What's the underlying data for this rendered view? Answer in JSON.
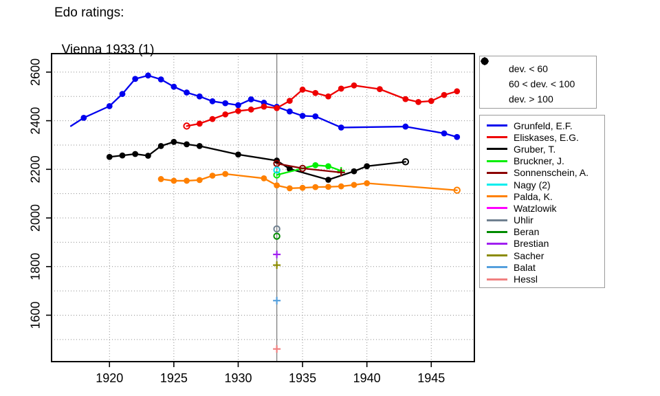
{
  "title": {
    "line1": "Edo ratings:",
    "line2": "Vienna 1933 (1)"
  },
  "marker_legend": {
    "items": [
      {
        "symbol": "filled-circle",
        "label": "dev. < 60"
      },
      {
        "symbol": "open-circle",
        "label": "60 < dev. < 100"
      },
      {
        "symbol": "plus",
        "label": "dev. > 100"
      }
    ]
  },
  "chart_data": {
    "type": "line",
    "title": "Edo ratings: Vienna 1933 (1)",
    "xlabel": "",
    "ylabel": "",
    "xlim": [
      1915.5,
      1948.35
    ],
    "ylim": [
      1409,
      2676
    ],
    "x_ticks": [
      1920,
      1925,
      1930,
      1935,
      1940,
      1945
    ],
    "y_ticks": [
      1600,
      1800,
      2000,
      2200,
      2400,
      2600
    ],
    "grid": "dotted, vertical at 5-year ticks, horizontal every 100 rating points",
    "legend_position": "right",
    "event_line": {
      "x": 1933,
      "color": "#808080"
    },
    "marker_meaning": {
      "f": "dev. < 60",
      "o": "60 < dev. < 100",
      "p": "dev. > 100",
      "n": "none"
    },
    "series": [
      {
        "name": "Grunfeld, E.F.",
        "color": "#0000EE",
        "legend_index": 0,
        "points": [
          [
            1917,
            2378,
            "n"
          ],
          [
            1918,
            2412,
            "f"
          ],
          [
            1920,
            2460,
            "f"
          ],
          [
            1921,
            2510,
            "f"
          ],
          [
            1922,
            2572,
            "f"
          ],
          [
            1923,
            2586,
            "f"
          ],
          [
            1924,
            2570,
            "f"
          ],
          [
            1925,
            2540,
            "f"
          ],
          [
            1926,
            2516,
            "f"
          ],
          [
            1927,
            2500,
            "f"
          ],
          [
            1928,
            2480,
            "f"
          ],
          [
            1929,
            2472,
            "f"
          ],
          [
            1930,
            2464,
            "f"
          ],
          [
            1931,
            2488,
            "f"
          ],
          [
            1932,
            2474,
            "f"
          ],
          [
            1933,
            2457,
            "f"
          ],
          [
            1934,
            2438,
            "f"
          ],
          [
            1935,
            2420,
            "f"
          ],
          [
            1936,
            2418,
            "f"
          ],
          [
            1938,
            2372,
            "f"
          ],
          [
            1943,
            2376,
            "f"
          ],
          [
            1946,
            2348,
            "f"
          ],
          [
            1947,
            2333,
            "f"
          ]
        ]
      },
      {
        "name": "Eliskases, E.G.",
        "color": "#EE0000",
        "legend_index": 1,
        "points": [
          [
            1926,
            2378,
            "o"
          ],
          [
            1927,
            2388,
            "f"
          ],
          [
            1928,
            2407,
            "f"
          ],
          [
            1929,
            2426,
            "f"
          ],
          [
            1930,
            2440,
            "f"
          ],
          [
            1931,
            2446,
            "f"
          ],
          [
            1932,
            2458,
            "f"
          ],
          [
            1933,
            2452,
            "f"
          ],
          [
            1934,
            2482,
            "f"
          ],
          [
            1935,
            2528,
            "f"
          ],
          [
            1936,
            2514,
            "f"
          ],
          [
            1937,
            2500,
            "f"
          ],
          [
            1938,
            2532,
            "f"
          ],
          [
            1939,
            2545,
            "f"
          ],
          [
            1941,
            2530,
            "f"
          ],
          [
            1943,
            2489,
            "f"
          ],
          [
            1944,
            2477,
            "f"
          ],
          [
            1945,
            2481,
            "f"
          ],
          [
            1946,
            2506,
            "f"
          ],
          [
            1947,
            2521,
            "f"
          ]
        ]
      },
      {
        "name": "Gruber, T.",
        "color": "#000000",
        "legend_index": 2,
        "points": [
          [
            1920,
            2251,
            "f"
          ],
          [
            1921,
            2257,
            "f"
          ],
          [
            1922,
            2263,
            "f"
          ],
          [
            1923,
            2256,
            "f"
          ],
          [
            1924,
            2296,
            "f"
          ],
          [
            1925,
            2313,
            "f"
          ],
          [
            1926,
            2303,
            "f"
          ],
          [
            1927,
            2296,
            "f"
          ],
          [
            1930,
            2261,
            "f"
          ],
          [
            1933,
            2236,
            "f"
          ],
          [
            1934,
            2202,
            "f"
          ],
          [
            1937,
            2157,
            "f"
          ],
          [
            1939,
            2192,
            "f"
          ],
          [
            1940,
            2213,
            "f"
          ],
          [
            1943,
            2231,
            "o"
          ]
        ]
      },
      {
        "name": "Bruckner, J.",
        "color": "#00EE00",
        "legend_index": 3,
        "points": [
          [
            1933,
            2177,
            "o"
          ],
          [
            1936,
            2217,
            "f"
          ],
          [
            1937,
            2213,
            "f"
          ],
          [
            1938,
            2194,
            "p"
          ]
        ]
      },
      {
        "name": "Sonnenschein, A.",
        "color": "#8B0000",
        "legend_index": 4,
        "points": [
          [
            1933,
            2224,
            "o"
          ],
          [
            1935,
            2204,
            "o"
          ],
          [
            1938,
            2187,
            "p"
          ]
        ]
      },
      {
        "name": "Watzlowik",
        "color": "#FF00FF",
        "legend_index": 7,
        "points": [
          [
            1933,
            2197,
            "o"
          ]
        ]
      },
      {
        "name": "Nagy (2)",
        "color": "#00EEEE",
        "legend_index": 5,
        "points": [
          [
            1933,
            2197,
            "o"
          ]
        ]
      },
      {
        "name": "Palda, K.",
        "color": "#FF8000",
        "legend_index": 6,
        "points": [
          [
            1924,
            2160,
            "f"
          ],
          [
            1925,
            2153,
            "f"
          ],
          [
            1926,
            2153,
            "f"
          ],
          [
            1927,
            2156,
            "f"
          ],
          [
            1928,
            2174,
            "f"
          ],
          [
            1929,
            2181,
            "f"
          ],
          [
            1932,
            2163,
            "f"
          ],
          [
            1933,
            2134,
            "f"
          ],
          [
            1934,
            2122,
            "f"
          ],
          [
            1935,
            2124,
            "f"
          ],
          [
            1936,
            2127,
            "f"
          ],
          [
            1937,
            2128,
            "f"
          ],
          [
            1938,
            2130,
            "f"
          ],
          [
            1939,
            2136,
            "f"
          ],
          [
            1940,
            2143,
            "f"
          ],
          [
            1947,
            2114,
            "o"
          ]
        ]
      },
      {
        "name": "Uhlir",
        "color": "#708090",
        "legend_index": 8,
        "points": [
          [
            1933,
            1955,
            "o"
          ]
        ]
      },
      {
        "name": "Beran",
        "color": "#008B00",
        "legend_index": 9,
        "points": [
          [
            1933,
            1925,
            "o"
          ]
        ]
      },
      {
        "name": "Brestian",
        "color": "#A020F0",
        "legend_index": 10,
        "points": [
          [
            1933,
            1850,
            "p"
          ]
        ]
      },
      {
        "name": "Sacher",
        "color": "#8B8B00",
        "legend_index": 11,
        "points": [
          [
            1933,
            1806,
            "p"
          ]
        ]
      },
      {
        "name": "Balat",
        "color": "#55A0DD",
        "legend_index": 12,
        "points": [
          [
            1933,
            1660,
            "p"
          ]
        ]
      },
      {
        "name": "Hessl",
        "color": "#F08080",
        "legend_index": 13,
        "points": [
          [
            1933,
            1461,
            "p"
          ]
        ]
      }
    ]
  }
}
